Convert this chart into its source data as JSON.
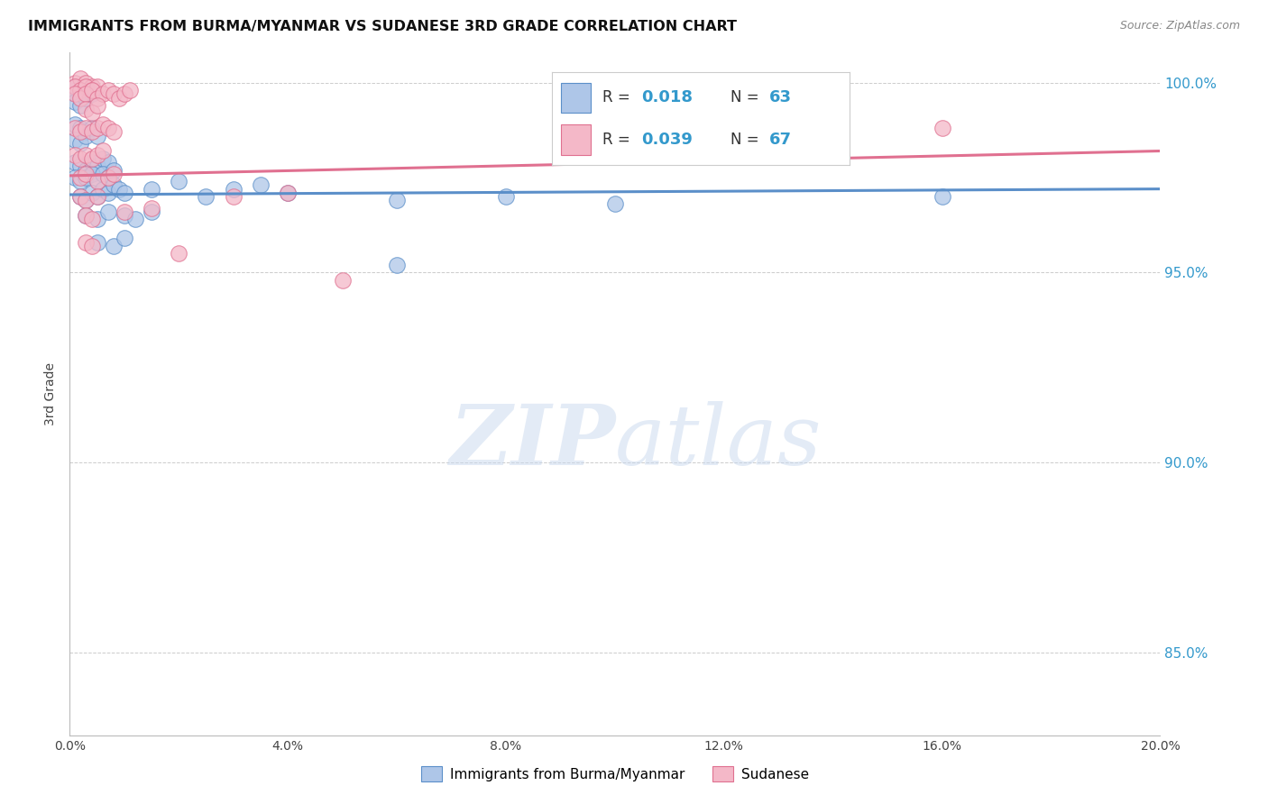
{
  "title": "IMMIGRANTS FROM BURMA/MYANMAR VS SUDANESE 3RD GRADE CORRELATION CHART",
  "source": "Source: ZipAtlas.com",
  "ylabel": "3rd Grade",
  "watermark_zip": "ZIP",
  "watermark_atlas": "atlas",
  "xlim": [
    0.0,
    0.2
  ],
  "ylim": [
    0.828,
    1.008
  ],
  "yticks": [
    0.85,
    0.9,
    0.95,
    1.0
  ],
  "ytick_labels": [
    "85.0%",
    "90.0%",
    "95.0%",
    "100.0%"
  ],
  "xticks": [
    0.0,
    0.04,
    0.08,
    0.12,
    0.16,
    0.2
  ],
  "xtick_labels": [
    "0.0%",
    "4.0%",
    "8.0%",
    "12.0%",
    "16.0%",
    "20.0%"
  ],
  "legend_label_blue": "Immigrants from Burma/Myanmar",
  "legend_label_pink": "Sudanese",
  "blue_color": "#aec6e8",
  "pink_color": "#f4b8c8",
  "blue_edge_color": "#5b8fc9",
  "pink_edge_color": "#e07090",
  "blue_line_color": "#5b8fc9",
  "pink_line_color": "#e07090",
  "blue_scatter": [
    [
      0.001,
      0.999
    ],
    [
      0.002,
      0.998
    ],
    [
      0.001,
      0.997
    ],
    [
      0.002,
      0.996
    ],
    [
      0.003,
      0.998
    ],
    [
      0.003,
      0.997
    ],
    [
      0.004,
      0.998
    ],
    [
      0.001,
      0.995
    ],
    [
      0.002,
      0.994
    ],
    [
      0.003,
      0.996
    ],
    [
      0.004,
      0.997
    ],
    [
      0.001,
      0.989
    ],
    [
      0.002,
      0.988
    ],
    [
      0.003,
      0.987
    ],
    [
      0.001,
      0.985
    ],
    [
      0.002,
      0.984
    ],
    [
      0.003,
      0.986
    ],
    [
      0.004,
      0.988
    ],
    [
      0.005,
      0.986
    ],
    [
      0.001,
      0.979
    ],
    [
      0.002,
      0.978
    ],
    [
      0.003,
      0.977
    ],
    [
      0.004,
      0.979
    ],
    [
      0.005,
      0.978
    ],
    [
      0.006,
      0.98
    ],
    [
      0.007,
      0.979
    ],
    [
      0.001,
      0.975
    ],
    [
      0.002,
      0.974
    ],
    [
      0.003,
      0.975
    ],
    [
      0.004,
      0.976
    ],
    [
      0.005,
      0.974
    ],
    [
      0.006,
      0.976
    ],
    [
      0.007,
      0.975
    ],
    [
      0.008,
      0.977
    ],
    [
      0.002,
      0.97
    ],
    [
      0.003,
      0.969
    ],
    [
      0.004,
      0.971
    ],
    [
      0.005,
      0.97
    ],
    [
      0.006,
      0.972
    ],
    [
      0.007,
      0.971
    ],
    [
      0.008,
      0.973
    ],
    [
      0.009,
      0.972
    ],
    [
      0.01,
      0.971
    ],
    [
      0.015,
      0.972
    ],
    [
      0.02,
      0.974
    ],
    [
      0.025,
      0.97
    ],
    [
      0.03,
      0.972
    ],
    [
      0.035,
      0.973
    ],
    [
      0.04,
      0.971
    ],
    [
      0.06,
      0.969
    ],
    [
      0.003,
      0.965
    ],
    [
      0.005,
      0.964
    ],
    [
      0.007,
      0.966
    ],
    [
      0.01,
      0.965
    ],
    [
      0.012,
      0.964
    ],
    [
      0.015,
      0.966
    ],
    [
      0.005,
      0.958
    ],
    [
      0.008,
      0.957
    ],
    [
      0.01,
      0.959
    ],
    [
      0.06,
      0.952
    ],
    [
      0.08,
      0.97
    ],
    [
      0.1,
      0.968
    ],
    [
      0.16,
      0.97
    ]
  ],
  "pink_scatter": [
    [
      0.001,
      1.0
    ],
    [
      0.002,
      1.001
    ],
    [
      0.003,
      1.0
    ],
    [
      0.004,
      0.999
    ],
    [
      0.001,
      0.999
    ],
    [
      0.002,
      0.998
    ],
    [
      0.003,
      0.999
    ],
    [
      0.004,
      0.998
    ],
    [
      0.005,
      0.999
    ],
    [
      0.001,
      0.997
    ],
    [
      0.002,
      0.996
    ],
    [
      0.003,
      0.997
    ],
    [
      0.004,
      0.998
    ],
    [
      0.005,
      0.996
    ],
    [
      0.006,
      0.997
    ],
    [
      0.007,
      0.998
    ],
    [
      0.008,
      0.997
    ],
    [
      0.009,
      0.996
    ],
    [
      0.01,
      0.997
    ],
    [
      0.011,
      0.998
    ],
    [
      0.003,
      0.993
    ],
    [
      0.004,
      0.992
    ],
    [
      0.005,
      0.994
    ],
    [
      0.001,
      0.988
    ],
    [
      0.002,
      0.987
    ],
    [
      0.003,
      0.988
    ],
    [
      0.004,
      0.987
    ],
    [
      0.005,
      0.988
    ],
    [
      0.006,
      0.989
    ],
    [
      0.007,
      0.988
    ],
    [
      0.008,
      0.987
    ],
    [
      0.001,
      0.981
    ],
    [
      0.002,
      0.98
    ],
    [
      0.003,
      0.981
    ],
    [
      0.004,
      0.98
    ],
    [
      0.005,
      0.981
    ],
    [
      0.006,
      0.982
    ],
    [
      0.002,
      0.975
    ],
    [
      0.003,
      0.976
    ],
    [
      0.005,
      0.974
    ],
    [
      0.007,
      0.975
    ],
    [
      0.008,
      0.976
    ],
    [
      0.002,
      0.97
    ],
    [
      0.003,
      0.969
    ],
    [
      0.005,
      0.97
    ],
    [
      0.003,
      0.965
    ],
    [
      0.004,
      0.964
    ],
    [
      0.01,
      0.966
    ],
    [
      0.015,
      0.967
    ],
    [
      0.003,
      0.958
    ],
    [
      0.004,
      0.957
    ],
    [
      0.02,
      0.955
    ],
    [
      0.03,
      0.97
    ],
    [
      0.04,
      0.971
    ],
    [
      0.05,
      0.948
    ],
    [
      0.12,
      0.997
    ],
    [
      0.16,
      0.988
    ]
  ],
  "blue_trendline_x": [
    0.0,
    0.2
  ],
  "blue_trendline_y": [
    0.9705,
    0.972
  ],
  "pink_trendline_x": [
    0.0,
    0.2
  ],
  "pink_trendline_y": [
    0.9755,
    0.982
  ]
}
